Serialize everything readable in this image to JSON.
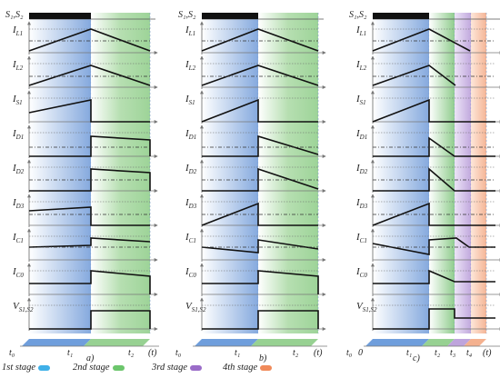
{
  "panels": [
    {
      "id": "a",
      "caption": "a)",
      "stages": [
        "#2f7fd0",
        "#5cc05c"
      ],
      "header": "S₁,S₂",
      "signals": [
        "I_L1",
        "I_L2",
        "I_S1",
        "I_D1",
        "I_D2",
        "I_D3",
        "I_C1",
        "I_C0",
        "V_S1,S2"
      ],
      "time_labels": [
        "t₀",
        "t₁",
        "t₂",
        "(t)"
      ]
    },
    {
      "id": "b",
      "caption": "b)",
      "stages": [
        "#2f7fd0",
        "#5cc05c"
      ],
      "header": "S₁,S₂",
      "signals": [
        "I_L1",
        "I_L2",
        "I_S1",
        "I_D1",
        "I_D2",
        "I_D3",
        "I_C1",
        "I_C0",
        "V_S1,S2"
      ],
      "time_labels": [
        "t₀",
        "t₁",
        "t₂",
        "(t)"
      ]
    },
    {
      "id": "c",
      "caption": "c)",
      "stages": [
        "#2f7fd0",
        "#5cc05c",
        "#a07ad0",
        "#f0a070"
      ],
      "header": "S₁,S₂",
      "signals": [
        "I_L1",
        "I_L2",
        "I_S1",
        "I_D1",
        "I_D2",
        "I_D3",
        "I_C1",
        "I_C0",
        "V_S1,S2"
      ],
      "time_labels": [
        "t₀",
        "0",
        "t₁",
        "t₂",
        "t₃",
        "t₄",
        "(t)"
      ]
    }
  ],
  "legend": [
    {
      "label": "1st stage",
      "color": "#3fb0e8"
    },
    {
      "label": "2nd stage",
      "color": "#6cc66c"
    },
    {
      "label": "3rd stage",
      "color": "#6cc66c"
    },
    {
      "label": "4th stage",
      "color": "#9a6cc8"
    },
    {
      "label": "",
      "color": "#f08a5a"
    }
  ],
  "legend_text": {
    "s1": "1st stage",
    "s2": "2nd stage",
    "s3": "3rd stage",
    "s4": "4th stage"
  }
}
